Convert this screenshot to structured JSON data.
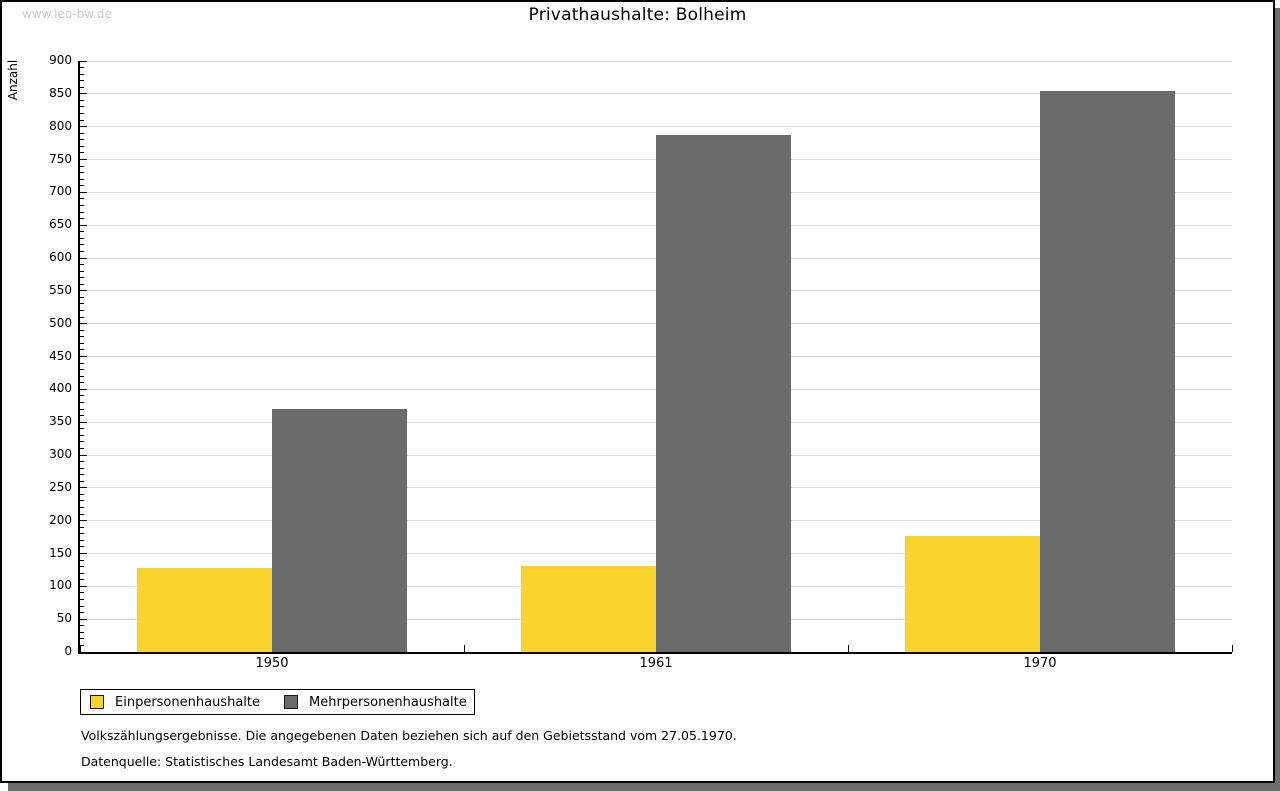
{
  "watermark": "www.leo-bw.de",
  "title": "Privathaushalte: Bolheim",
  "chart_data": {
    "type": "bar",
    "title": "Privathaushalte: Bolheim",
    "categories": [
      "1950",
      "1961",
      "1970"
    ],
    "series": [
      {
        "name": "Einpersonenhaushalte",
        "color": "#fbd32d",
        "values": [
          128,
          131,
          176
        ]
      },
      {
        "name": "Mehrpersonenhaushalte",
        "color": "#6b6b6b",
        "values": [
          370,
          787,
          855
        ]
      }
    ],
    "xlabel": "",
    "ylabel": "Anzahl",
    "ylim": [
      0,
      900
    ],
    "ytick_step": 50,
    "yminor_step": 10,
    "grid": true,
    "gridline_color": "#dcdcdc",
    "legend_position": "bottom-left"
  },
  "footer": {
    "line1": "Volkszählungsergebnisse. Die angegebenen Daten beziehen sich auf den Gebietsstand vom 27.05.1970.",
    "line2": "Datenquelle: Statistisches Landesamt Baden-Württemberg."
  }
}
